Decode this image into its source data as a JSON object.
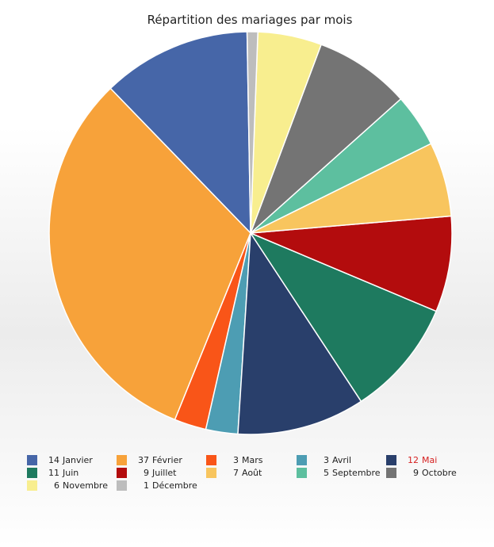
{
  "chart_data": {
    "type": "pie",
    "title": "Répartition des mariages par mois",
    "series": [
      {
        "label": "Janvier",
        "value": 14,
        "color": "#4666a8"
      },
      {
        "label": "Février",
        "value": 37,
        "color": "#f7a23a"
      },
      {
        "label": "Mars",
        "value": 3,
        "color": "#f95518"
      },
      {
        "label": "Avril",
        "value": 3,
        "color": "#4d9db3"
      },
      {
        "label": "Mai",
        "value": 12,
        "color": "#293f6b",
        "highlight": true
      },
      {
        "label": "Juin",
        "value": 11,
        "color": "#1e7a5f"
      },
      {
        "label": "Juillet",
        "value": 9,
        "color": "#b30c0d"
      },
      {
        "label": "Août",
        "value": 7,
        "color": "#f8c55e"
      },
      {
        "label": "Septembre",
        "value": 5,
        "color": "#5dbf9f"
      },
      {
        "label": "Octobre",
        "value": 9,
        "color": "#747474"
      },
      {
        "label": "Novembre",
        "value": 6,
        "color": "#f8ee8f"
      },
      {
        "label": "Décembre",
        "value": 1,
        "color": "#bdbdbd"
      }
    ],
    "start_angle_deg": 91,
    "direction": "counterclockwise",
    "legend_position": "bottom"
  }
}
